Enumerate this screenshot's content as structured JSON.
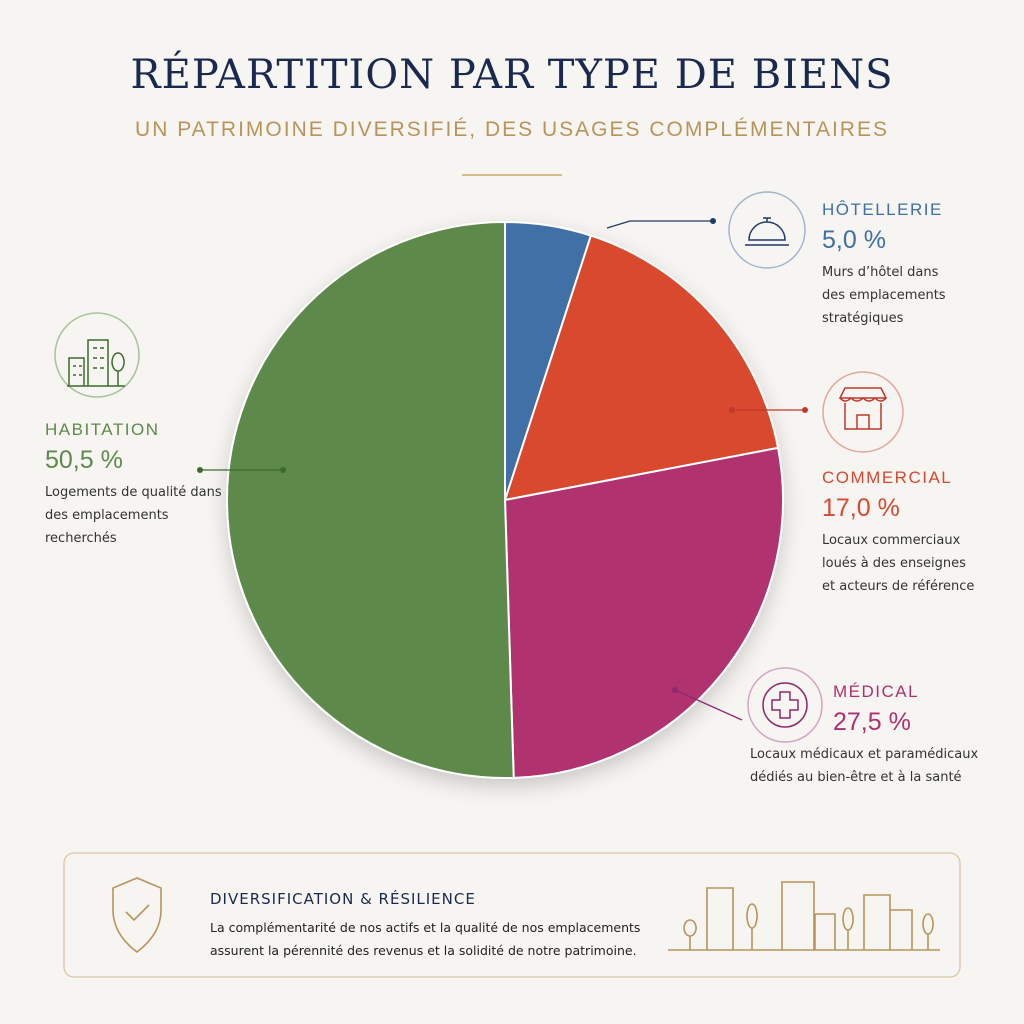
{
  "chart_data": {
    "type": "pie",
    "title": "RÉPARTITION PAR TYPE DE BIENS",
    "subtitle": "UN PATRIMOINE DIVERSIFIÉ, DES USAGES COMPLÉMENTAIRES",
    "categories": [
      "HÔTELLERIE",
      "COMMERCIAL",
      "MÉDICAL",
      "HABITATION"
    ],
    "values": [
      5.0,
      17.0,
      27.5,
      50.5
    ],
    "value_labels": [
      "5,0 %",
      "17,0 %",
      "27,5 %",
      "50,5 %"
    ],
    "descriptions": [
      "Murs d’hôtel dans des emplacements stratégiques",
      "Locaux commerciaux loués à des enseignes et acteurs de référence",
      "Locaux médicaux et paramédicaux dédiés au bien-être et à la santé",
      "Logements de qualité dans des emplacements recherchés"
    ],
    "colors": [
      "#3f6fa6",
      "#d9482f",
      "#b0306e",
      "#5d8a4c"
    ]
  },
  "footer": {
    "title": "DIVERSIFICATION & RÉSILIENCE",
    "text": "La complémentarité de nos actifs et la qualité de nos emplacements assurent la pérennité des revenus et la solidité de notre patrimoine."
  }
}
